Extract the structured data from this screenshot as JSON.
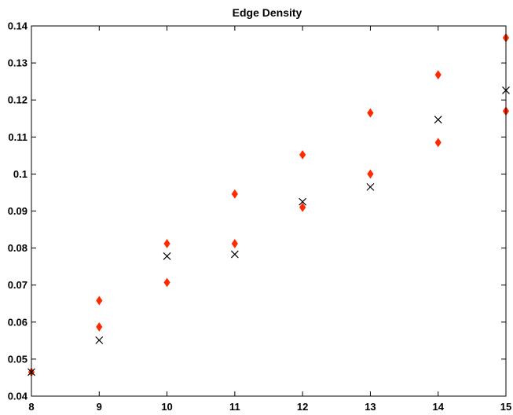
{
  "chart_data": {
    "type": "scatter",
    "title": "Edge Density",
    "xlabel": "",
    "ylabel": "",
    "xlim": [
      8,
      15
    ],
    "ylim": [
      0.04,
      0.14
    ],
    "grid": false,
    "x_ticks": [
      8,
      9,
      10,
      11,
      12,
      13,
      14,
      15
    ],
    "y_ticks": [
      0.04,
      0.05,
      0.06,
      0.07,
      0.08,
      0.09,
      0.1,
      0.11,
      0.12,
      0.13,
      0.14
    ],
    "x_tick_labels": [
      "8",
      "9",
      "10",
      "11",
      "12",
      "13",
      "14",
      "15"
    ],
    "y_tick_labels": [
      "0.04",
      "0.05",
      "0.06",
      "0.07",
      "0.08",
      "0.09",
      "0.1",
      "0.11",
      "0.12",
      "0.13",
      "0.14"
    ],
    "series": [
      {
        "marker": "diamond",
        "color": "#ff2a00",
        "x": [
          8,
          9,
          9,
          10,
          10,
          11,
          11,
          12,
          12,
          13,
          13,
          14,
          14,
          15,
          15
        ],
        "y": [
          0.0465,
          0.0587,
          0.0658,
          0.0707,
          0.0812,
          0.0812,
          0.0946,
          0.091,
          0.1052,
          0.1,
          0.1165,
          0.1085,
          0.1268,
          0.117,
          0.1368
        ]
      },
      {
        "marker": "x",
        "color": "#000000",
        "x": [
          8,
          9,
          10,
          11,
          12,
          13,
          14,
          15
        ],
        "y": [
          0.0465,
          0.0551,
          0.0778,
          0.0783,
          0.0925,
          0.0965,
          0.1147,
          0.1226
        ]
      }
    ]
  }
}
